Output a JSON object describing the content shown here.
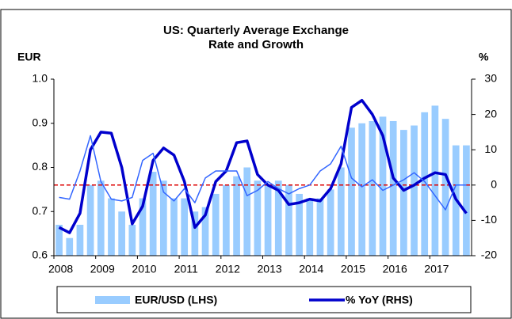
{
  "chart_data": {
    "type": "bar_line",
    "title": "US: Quarterly Average Exchange Rate and Growth",
    "ylabel": "EUR",
    "y2label": "%",
    "categories": [
      "2008",
      null,
      null,
      null,
      "2009",
      null,
      null,
      null,
      "2010",
      null,
      null,
      null,
      "2011",
      null,
      null,
      null,
      "2012",
      null,
      null,
      null,
      "2013",
      null,
      null,
      null,
      "2014",
      null,
      null,
      null,
      "2015",
      null,
      null,
      null,
      "2016",
      null,
      null,
      null,
      "2017",
      null,
      null,
      null
    ],
    "series": [
      {
        "name": "EUR/USD (LHS)",
        "type": "bar",
        "color": "#99ccff",
        "axis": "y",
        "values": [
          0.67,
          0.64,
          0.67,
          0.76,
          0.77,
          0.73,
          0.7,
          0.67,
          0.73,
          0.79,
          0.77,
          0.73,
          0.73,
          0.7,
          0.71,
          0.74,
          0.76,
          0.78,
          0.8,
          0.77,
          0.76,
          0.77,
          0.76,
          0.74,
          0.73,
          0.73,
          0.75,
          0.8,
          0.89,
          0.9,
          0.905,
          0.915,
          0.905,
          0.885,
          0.895,
          0.925,
          0.94,
          0.91,
          0.85,
          0.85
        ]
      },
      {
        "name": "% YoY (RHS)",
        "type": "line",
        "color": "#0000cc",
        "width": 3.5,
        "axis": "y2",
        "values": [
          -12,
          -13.5,
          -8,
          10,
          15,
          14.7,
          5,
          -11,
          -6,
          7,
          10.5,
          8.5,
          1,
          -12,
          -8.5,
          1,
          4,
          12,
          12.5,
          3,
          0,
          -1.5,
          -5.5,
          -5,
          -4,
          -4.5,
          -1,
          6,
          22,
          24,
          20,
          14,
          2,
          -1.5,
          0,
          2,
          3.5,
          3,
          -4,
          -8
        ]
      },
      {
        "type": "line",
        "color": "#3366ff",
        "width": 1.5,
        "axis": "y2",
        "legend": false,
        "values": [
          -3.5,
          -4,
          4,
          14,
          1,
          -4,
          -4.5,
          -3.5,
          7,
          9,
          -2,
          -4.5,
          -1,
          -5,
          2,
          4,
          4,
          4,
          -3,
          -1.5,
          1,
          -1,
          -2.5,
          -1,
          0,
          4,
          6,
          11,
          2,
          -0.5,
          1.5,
          -1.5,
          0,
          1.5,
          3.5,
          1,
          -3,
          -7,
          0,
          0
        ]
      }
    ],
    "ylim": [
      0.6,
      1.0
    ],
    "yticks": [
      0.6,
      0.7,
      0.8,
      0.9,
      {
        "value": 1.0,
        "label": "1.0"
      }
    ],
    "y2lim": [
      -20,
      30
    ],
    "y2ticks": [
      -20,
      -10,
      0,
      10,
      20,
      30
    ],
    "reference_line": {
      "value": 0,
      "axis": "y2",
      "color": "#dd0000"
    },
    "legend": "bottom"
  }
}
